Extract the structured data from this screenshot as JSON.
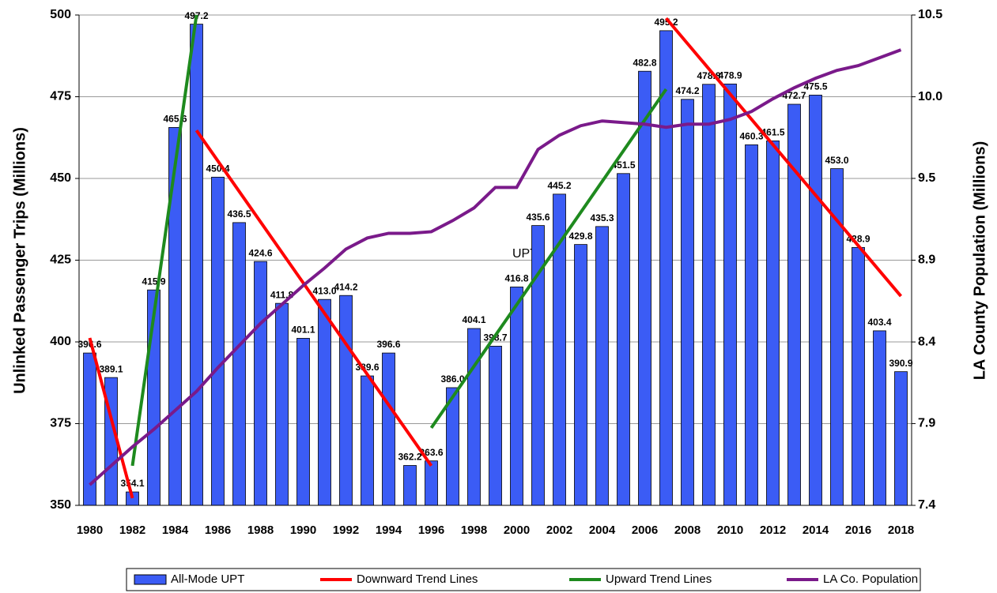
{
  "chart_data": {
    "type": "bar",
    "y_label": "Unlinked Passenger Trips (Millions)",
    "y2_label": "LA County Population (Millions)",
    "annotation": "UPT",
    "categories": [
      "1980",
      null,
      "1982",
      null,
      "1984",
      null,
      "1986",
      null,
      "1988",
      null,
      "1990",
      null,
      "1992",
      null,
      "1994",
      null,
      "1996",
      null,
      "1998",
      null,
      "2000",
      null,
      "2002",
      null,
      "2004",
      null,
      "2006",
      null,
      "2008",
      null,
      "2010",
      null,
      "2012",
      null,
      "2014",
      null,
      "2016",
      null,
      "2018"
    ],
    "ylim": [
      350,
      500
    ],
    "yticks": [
      350,
      375,
      400,
      425,
      450,
      475,
      500
    ],
    "y2lim": [
      7.4,
      10.5
    ],
    "y2ticks": [
      {
        "value": 7.4,
        "label": "7.4"
      },
      {
        "value": 7.917,
        "label": "7.9"
      },
      {
        "value": 8.433,
        "label": "8.4"
      },
      {
        "value": 8.95,
        "label": "8.9"
      },
      {
        "value": 9.467,
        "label": "9.5"
      },
      {
        "value": 9.983,
        "label": "10.0"
      },
      {
        "value": 10.5,
        "label": "10.5"
      }
    ],
    "grid": true,
    "legend": "bottom",
    "series": [
      {
        "name": "All-Mode UPT",
        "type": "bar",
        "color": "#3b5cf5",
        "values": [
          396.6,
          389.1,
          354.1,
          415.9,
          465.6,
          497.2,
          450.4,
          436.5,
          424.6,
          411.8,
          401.1,
          413.0,
          414.2,
          389.6,
          396.6,
          362.2,
          363.6,
          386.0,
          404.1,
          398.7,
          416.8,
          435.6,
          445.2,
          429.8,
          435.3,
          451.5,
          482.8,
          495.2,
          474.2,
          478.8,
          478.9,
          460.3,
          461.5,
          472.7,
          475.5,
          453.0,
          428.9,
          403.4,
          390.9
        ],
        "value_labels": [
          "396.6",
          "389.1",
          "354.1",
          "415.9",
          "465.6",
          "497.2",
          "450.4",
          "436.5",
          "424.6",
          "411.8",
          "401.1",
          "413.0",
          "414.2",
          "389.6",
          "396.6",
          "362.2",
          "363.6",
          "386.0",
          "404.1",
          "398.7",
          "416.8",
          "435.6",
          "445.2",
          "429.8",
          "435.3",
          "451.5",
          "482.8",
          "495.2",
          "474.2",
          "478.8",
          "478.9",
          "460.3",
          "461.5",
          "472.7",
          "475.5",
          "453.0",
          "428.9",
          "403.4",
          "390.9"
        ]
      },
      {
        "name": "Downward Trend Lines",
        "type": "line",
        "color": "#ff0000",
        "x": [
          1980,
          1982,
          null,
          1985,
          1996,
          null,
          2007,
          2018
        ],
        "values": [
          401.2,
          352.2,
          null,
          464.7,
          362.1,
          null,
          499.0,
          414.0
        ]
      },
      {
        "name": "Upward Trend Lines",
        "type": "line",
        "color": "#1e8a1e",
        "x": [
          1982,
          1985,
          null,
          1996,
          2007
        ],
        "values": [
          362.1,
          500,
          null,
          373.7,
          477.3
        ]
      },
      {
        "name": "LA Co. Population",
        "type": "line",
        "axis": "y2",
        "color": "#7a1a8a",
        "values": [
          7.53,
          7.65,
          7.77,
          7.88,
          8.0,
          8.12,
          8.27,
          8.41,
          8.55,
          8.67,
          8.79,
          8.9,
          9.02,
          9.09,
          9.12,
          9.12,
          9.13,
          9.2,
          9.28,
          9.41,
          9.41,
          9.65,
          9.74,
          9.8,
          9.83,
          9.82,
          9.81,
          9.79,
          9.81,
          9.81,
          9.84,
          9.89,
          9.97,
          10.04,
          10.1,
          10.15,
          10.18,
          10.23,
          10.28
        ]
      }
    ]
  }
}
